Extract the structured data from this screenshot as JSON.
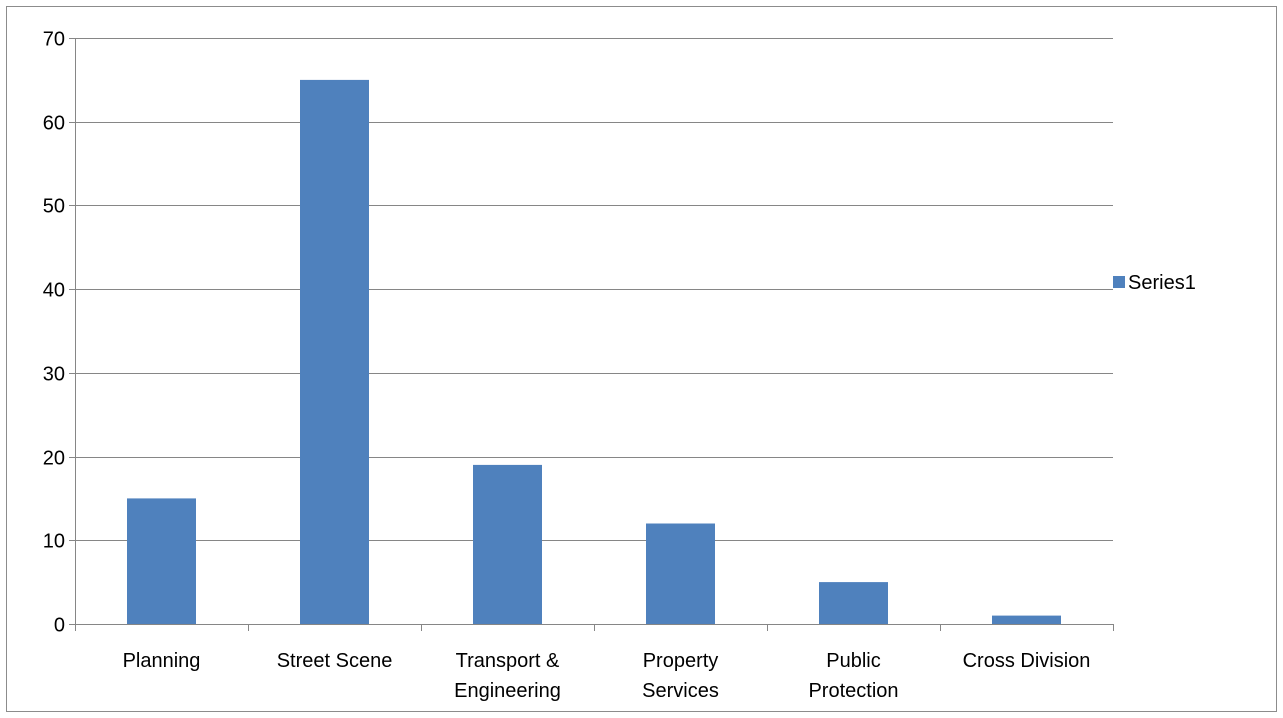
{
  "chart_data": {
    "type": "bar",
    "title": "",
    "xlabel": "",
    "ylabel": "",
    "categories": [
      [
        "Planning"
      ],
      [
        "Street Scene"
      ],
      [
        "Transport &",
        "Engineering"
      ],
      [
        "Property",
        "Services"
      ],
      [
        "Public",
        "Protection"
      ],
      [
        "Cross Division"
      ]
    ],
    "series": [
      {
        "name": "Series1",
        "values": [
          15,
          65,
          19,
          12,
          5,
          1
        ],
        "color": "#4f81bd"
      }
    ],
    "ylim": [
      0,
      70
    ],
    "yticks": [
      "0",
      "10",
      "20",
      "30",
      "40",
      "50",
      "60",
      "70"
    ],
    "grid": true,
    "legend": "right"
  }
}
